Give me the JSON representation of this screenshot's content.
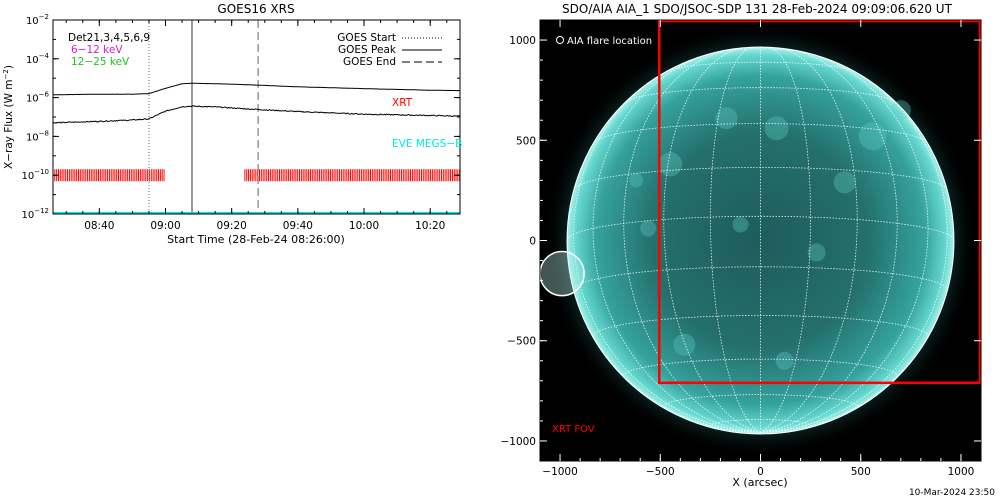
{
  "footer_timestamp": "10-Mar-2024 23:50",
  "chart_data": [
    {
      "type": "line",
      "title": "GOES16 XRS",
      "xlabel": "Start Time (28-Feb-24 08:26:00)",
      "ylabel": "X-ray Flux (W m-2)",
      "ylabel_main": "X−ray Flux (W m",
      "ylabel_sup": "−2",
      "ylabel_close": ")",
      "y_scale": "log",
      "xlim": [
        "08:26",
        "10:29"
      ],
      "ylim": [
        1e-12,
        0.01
      ],
      "x_ticks": [
        "08:40",
        "09:00",
        "09:20",
        "09:40",
        "10:00",
        "10:20"
      ],
      "y_ticks": [
        {
          "base": "10",
          "exp": "−12",
          "value": 1e-12
        },
        {
          "base": "10",
          "exp": "−10",
          "value": 1e-10
        },
        {
          "base": "10",
          "exp": "−8",
          "value": 1e-08
        },
        {
          "base": "10",
          "exp": "−6",
          "value": 1e-06
        },
        {
          "base": "10",
          "exp": "−4",
          "value": 0.0001
        },
        {
          "base": "10",
          "exp": "−2",
          "value": 0.01
        }
      ],
      "detectors_label": "Det21,3,4,5,6,9",
      "energy_bands": [
        {
          "name": "6−12 keV",
          "color": "#d020d0"
        },
        {
          "name": "12−25 keV",
          "color": "#20c020"
        }
      ],
      "legend_placement": "top-right",
      "legend": [
        {
          "name": "GOES Start",
          "style": "dotted"
        },
        {
          "name": "GOES Peak",
          "style": "solid"
        },
        {
          "name": "GOES End",
          "style": "dashed"
        }
      ],
      "vlines": [
        {
          "name": "GOES Start",
          "time": "08:55",
          "style": "dotted"
        },
        {
          "name": "GOES Peak",
          "time": "09:08",
          "style": "solid"
        },
        {
          "name": "GOES End",
          "time": "09:28",
          "style": "dashed"
        }
      ],
      "series": [
        {
          "name": "GOES long channel",
          "color": "#000000",
          "x": [
            "08:26",
            "08:40",
            "08:50",
            "08:55",
            "09:00",
            "09:05",
            "09:08",
            "09:15",
            "09:25",
            "09:40",
            "10:00",
            "10:20",
            "10:29"
          ],
          "y": [
            1.4e-06,
            1.5e-06,
            1.5e-06,
            1.6e-06,
            3e-06,
            5.2e-06,
            5.5e-06,
            5.2e-06,
            4.6e-06,
            3.6e-06,
            2.9e-06,
            2.4e-06,
            2.3e-06
          ]
        },
        {
          "name": "GOES short channel",
          "color": "#000000",
          "x": [
            "08:26",
            "08:40",
            "08:50",
            "08:55",
            "09:00",
            "09:05",
            "09:08",
            "09:15",
            "09:25",
            "09:40",
            "10:00",
            "10:20",
            "10:29"
          ],
          "y": [
            5e-08,
            6e-08,
            7e-08,
            8e-08,
            2e-07,
            3.4e-07,
            3.6e-07,
            3.3e-07,
            2.6e-07,
            1.9e-07,
            1.4e-07,
            1.2e-07,
            1.1e-07
          ]
        }
      ],
      "annotations": [
        {
          "text": "XRT",
          "color": "#ff0000"
        },
        {
          "text": "EVE MEGS−B",
          "color": "#00e5e5"
        }
      ],
      "xrt_coverage": {
        "color": "#ff0000",
        "value": 1e-10,
        "intervals": [
          [
            "08:26",
            "09:00"
          ],
          [
            "09:24",
            "10:29"
          ]
        ]
      },
      "eve_level": 1e-12,
      "eve_color": "#00e5e5"
    },
    {
      "type": "scatter",
      "title": "SDO/AIA AIA_1 SDO/JSOC-SDP 131 28-Feb-2024 09:09:06.620 UT",
      "xlabel": "X (arcsec)",
      "ylabel": "",
      "xlim": [
        -1100,
        1100
      ],
      "ylim": [
        -1100,
        1100
      ],
      "x_ticks": [
        -1000,
        -500,
        0,
        500,
        1000
      ],
      "y_ticks": [
        -1000,
        -500,
        0,
        500,
        1000
      ],
      "x_tick_labels": [
        "−1000",
        "−500",
        "0",
        "500",
        "1000"
      ],
      "y_tick_labels": [
        "−1000",
        "−500",
        "0",
        "500",
        "1000"
      ],
      "solar_radius_arcsec": 965,
      "grid": true,
      "flare_label": "AIA flare location",
      "flare_location": {
        "x": -990,
        "y": -165,
        "radius": 110
      },
      "fov_label": "XRT FOV",
      "fov_color": "#ff0000",
      "fov": {
        "x0": -505,
        "x1": 1100,
        "y0": -710,
        "y1": 1100
      }
    }
  ]
}
